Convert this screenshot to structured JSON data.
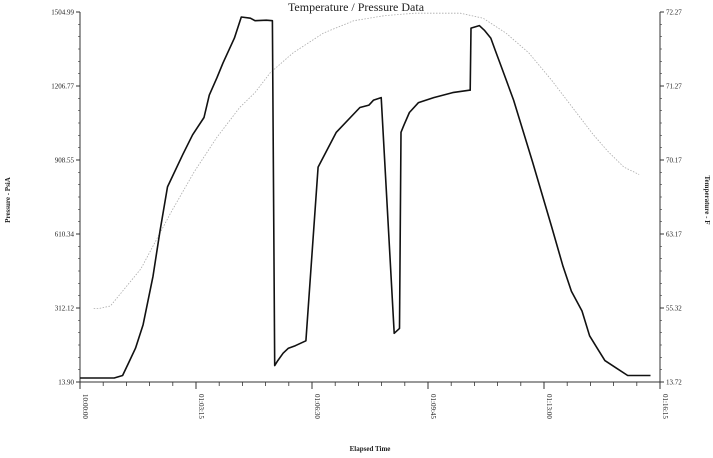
{
  "chart_data": {
    "type": "line",
    "title": "Temperature / Pressure Data",
    "xlabel": "Elapsed Time",
    "ylabel": "Pressure - PsiA",
    "y2label": "Temperature - F",
    "x_tick_labels": [
      "10:00:00",
      "01:03:15",
      "01:06:30",
      "01:09:45",
      "01:13:00",
      "01:16:15"
    ],
    "xlim_minutes": [
      0,
      76.25
    ],
    "ylim": [
      13.9,
      1504.99
    ],
    "y_ticks": [
      "13.90",
      "312.12",
      "610.34",
      "908.55",
      "1206.77",
      "1504.99"
    ],
    "y_tick_values": [
      13.9,
      312.12,
      610.34,
      908.55,
      1206.77,
      1504.99
    ],
    "y2_ticks": [
      "13.72",
      "55.32",
      "63.17",
      "70.17",
      "71.27",
      "72.27"
    ],
    "grid": false,
    "colors": {
      "pressure": "#111111",
      "temperature": "#aaaaaa",
      "axis": "#333333"
    },
    "series": [
      {
        "key": "pressure",
        "x_minutes": [
          0,
          4.5,
          5.6,
          6.3,
          7.3,
          8.3,
          9.6,
          10.5,
          11.5,
          13.5,
          14.8,
          16.3,
          17.0,
          18.0,
          18.8,
          20.3,
          21.2,
          22.4,
          23.0,
          24.5,
          25.3,
          25.6,
          26.0,
          26.7,
          27.4,
          28.3,
          29.7,
          31.3,
          33.7,
          36.8,
          38.0,
          38.3,
          38.6,
          39.6,
          41.3,
          42.0,
          42.2,
          42.6,
          43.3,
          44.5,
          46.5,
          49.0,
          51.2,
          51.3,
          51.4,
          52.5,
          53.2,
          54.0,
          54.6,
          55.2,
          57.0,
          59.5,
          62.0,
          63.5,
          64.6,
          66.0,
          67.0,
          68.0,
          69.0,
          70.5,
          72.0,
          75.0
        ],
        "values": [
          30,
          30,
          40,
          85,
          150,
          245,
          440,
          620,
          800,
          930,
          1010,
          1080,
          1170,
          1240,
          1300,
          1400,
          1485,
          1480,
          1470,
          1472,
          1470,
          80,
          100,
          130,
          150,
          160,
          180,
          880,
          1020,
          1120,
          1130,
          1140,
          1150,
          1160,
          210,
          230,
          1020,
          1050,
          1100,
          1140,
          1160,
          1180,
          1190,
          1190,
          1440,
          1450,
          1430,
          1400,
          1350,
          1300,
          1150,
          900,
          640,
          480,
          380,
          300,
          200,
          150,
          100,
          70,
          40,
          40
        ]
      },
      {
        "key": "temperature",
        "x_minutes": [
          1.8,
          2.5,
          4.0,
          8.0,
          12.0,
          15.0,
          18.0,
          21.0,
          23.0,
          25.0,
          28.0,
          32.0,
          36.0,
          40.0,
          44.0,
          48.0,
          50.0,
          53.0,
          56.0,
          59.0,
          62.0,
          65.0,
          67.5,
          69.5,
          71.5,
          73.5
        ],
        "values": [
          310,
          310,
          320,
          470,
          700,
          860,
          1000,
          1120,
          1180,
          1260,
          1340,
          1420,
          1470,
          1490,
          1500,
          1500,
          1500,
          1480,
          1420,
          1340,
          1230,
          1110,
          1010,
          940,
          880,
          850
        ]
      }
    ]
  }
}
